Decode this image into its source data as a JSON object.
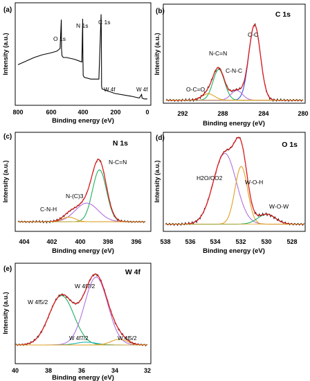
{
  "figure": {
    "panels": [
      {
        "id": "a",
        "label": "(a)",
        "title": "",
        "xlabel": "Binding energy (eV)",
        "ylabel": "Intensity (a.u.)",
        "xticks": [
          "800",
          "600",
          "400",
          "200",
          "0"
        ],
        "annotations": [
          "O 1s",
          "N 1s",
          "C 1s",
          "W 4f",
          "W 4f"
        ]
      },
      {
        "id": "b",
        "label": "(b)",
        "title": "C 1s",
        "xlabel": "Binding energy (eV)",
        "ylabel": "Intensity (a.u.)",
        "xticks": [
          "292",
          "288",
          "284",
          "280"
        ],
        "annotations": [
          "C-C",
          "N-C=N",
          "C-N-C",
          "O-C=O"
        ]
      },
      {
        "id": "c",
        "label": "(c)",
        "title": "N 1s",
        "xlabel": "Binding energy (eV)",
        "ylabel": "Intensity (a.u.)",
        "xticks": [
          "404",
          "402",
          "400",
          "398",
          "396"
        ],
        "annotations": [
          "N-C=N",
          "N-(C)3",
          "C-N-H"
        ]
      },
      {
        "id": "d",
        "label": "(d)",
        "title": "O 1s",
        "xlabel": "Binding energy (eV)",
        "ylabel": "Intensity (a.u.)",
        "xticks": [
          "538",
          "536",
          "534",
          "532",
          "530",
          "528"
        ],
        "annotations": [
          "H2O/CO2",
          "W-O-H",
          "W-O-W"
        ]
      },
      {
        "id": "e",
        "label": "(e)",
        "title": "W 4f",
        "xlabel": "Binding energy (eV)",
        "ylabel": "Intensity (a.u.)",
        "xticks": [
          "40",
          "38",
          "36",
          "34",
          "32"
        ],
        "annotations": [
          "W 4f5/2",
          "W 4f7/2",
          "W 4f7/2",
          "W 4f5/2"
        ]
      }
    ]
  },
  "colors": {
    "envelope": "#e02020",
    "fit_green": "#20b060",
    "fit_violet": "#b070e0",
    "fit_blue": "#6090e0",
    "fit_orange": "#e0a020",
    "fit_teal": "#20b0b0",
    "raw": "#111111",
    "survey": "#000000"
  },
  "chart_data": [
    {
      "panel": "a",
      "type": "line",
      "xlabel": "Binding energy (eV)",
      "ylabel": "Intensity (a.u.)",
      "xlim": [
        800,
        0
      ],
      "x": [
        800,
        700,
        650,
        600,
        560,
        540,
        532,
        531,
        528,
        520,
        500,
        450,
        420,
        405,
        400,
        399,
        397,
        390,
        350,
        300,
        286,
        285,
        283,
        280,
        200,
        100,
        50,
        36,
        33,
        20,
        0
      ],
      "y": [
        0.42,
        0.5,
        0.53,
        0.55,
        0.57,
        0.6,
        0.92,
        0.6,
        0.52,
        0.5,
        0.5,
        0.48,
        0.46,
        0.45,
        0.93,
        0.6,
        0.3,
        0.28,
        0.26,
        0.26,
        0.98,
        0.8,
        0.18,
        0.15,
        0.1,
        0.07,
        0.05,
        0.09,
        0.05,
        0.04,
        0.04
      ]
    },
    {
      "panel": "b",
      "type": "line",
      "xlabel": "Binding energy (eV)",
      "ylabel": "Intensity (a.u.)",
      "xlim": [
        293,
        280
      ],
      "series": [
        {
          "type": "gauss",
          "center": 284.6,
          "height": 0.93,
          "width": 0.55,
          "color": "#3050e0"
        },
        {
          "type": "gauss",
          "center": 288.0,
          "height": 0.38,
          "width": 0.55,
          "color": "#20b060"
        },
        {
          "type": "gauss",
          "center": 286.3,
          "height": 0.12,
          "width": 0.55,
          "color": "#b070e0"
        },
        {
          "type": "gauss",
          "center": 289.0,
          "height": 0.08,
          "width": 0.6,
          "color": "#e0a020"
        }
      ]
    },
    {
      "panel": "c",
      "type": "line",
      "xlabel": "Binding energy (eV)",
      "ylabel": "Intensity (a.u.)",
      "xlim": [
        405,
        395
      ],
      "series": [
        {
          "type": "gauss",
          "center": 398.6,
          "height": 0.78,
          "width": 0.55,
          "color": "#20b060"
        },
        {
          "type": "gauss",
          "center": 399.6,
          "height": 0.28,
          "width": 0.9,
          "color": "#b070e0"
        },
        {
          "type": "gauss",
          "center": 401.0,
          "height": 0.07,
          "width": 0.5,
          "color": "#e0a020"
        }
      ]
    },
    {
      "panel": "d",
      "type": "line",
      "xlabel": "Binding energy (eV)",
      "ylabel": "Intensity (a.u.)",
      "xlim": [
        538,
        527
      ],
      "series": [
        {
          "type": "gauss",
          "center": 533.3,
          "height": 0.86,
          "width": 0.9,
          "color": "#b070e0"
        },
        {
          "type": "gauss",
          "center": 532.0,
          "height": 0.7,
          "width": 0.5,
          "color": "#e0a020"
        },
        {
          "type": "gauss",
          "center": 530.0,
          "height": 0.12,
          "width": 0.7,
          "color": "#20b060"
        }
      ]
    },
    {
      "panel": "e",
      "type": "line",
      "xlabel": "Binding energy (eV)",
      "ylabel": "Intensity (a.u.)",
      "xlim": [
        40,
        32
      ],
      "series": [
        {
          "type": "gauss",
          "center": 37.2,
          "height": 0.7,
          "width": 0.75,
          "color": "#20b060"
        },
        {
          "type": "gauss",
          "center": 35.1,
          "height": 0.96,
          "width": 0.7,
          "color": "#b070e0"
        },
        {
          "type": "gauss",
          "center": 35.7,
          "height": 0.04,
          "width": 0.6,
          "color": "#20b0b0"
        },
        {
          "type": "gauss",
          "center": 33.7,
          "height": 0.08,
          "width": 0.5,
          "color": "#e0a020"
        }
      ]
    }
  ]
}
